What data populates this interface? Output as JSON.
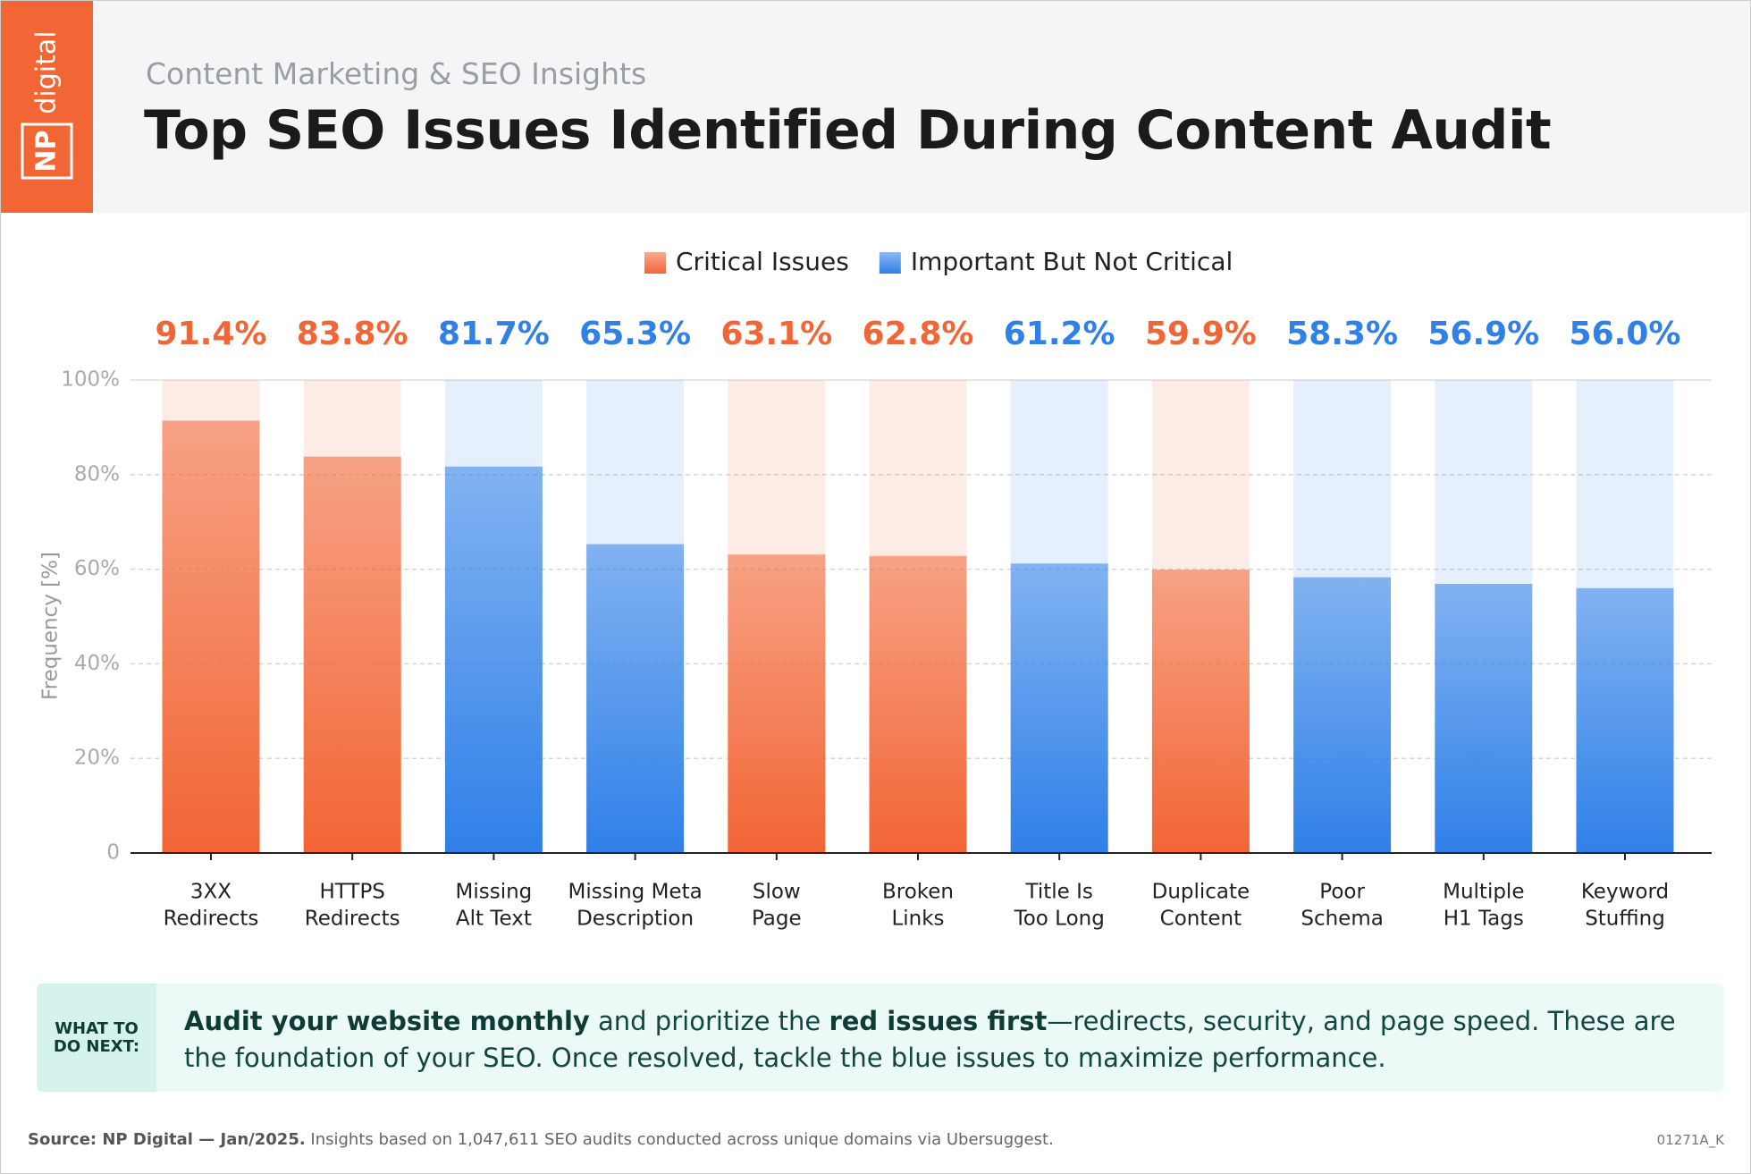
{
  "logo": {
    "np": "NP",
    "digital": "digital"
  },
  "header": {
    "subtitle": "Content Marketing & SEO Insights",
    "title": "Top SEO Issues Identified During Content Audit"
  },
  "chart_data": {
    "type": "bar",
    "ylabel": "Frequency [%]",
    "categories": [
      [
        "3XX",
        "Redirects"
      ],
      [
        "HTTPS",
        "Redirects"
      ],
      [
        "Missing",
        "Alt Text"
      ],
      [
        "Missing Meta",
        "Description"
      ],
      [
        "Slow",
        "Page"
      ],
      [
        "Broken",
        "Links"
      ],
      [
        "Title Is",
        "Too Long"
      ],
      [
        "Duplicate",
        "Content"
      ],
      [
        "Poor",
        "Schema"
      ],
      [
        "Multiple",
        "H1 Tags"
      ],
      [
        "Keyword",
        "Stuffing"
      ]
    ],
    "series": [
      {
        "name": "Critical Issues",
        "color": "#f26535",
        "values": [
          91.4,
          83.8,
          null,
          null,
          63.1,
          62.8,
          null,
          59.9,
          null,
          null,
          null
        ],
        "value_labels": [
          "91.4%",
          "83.8%",
          null,
          null,
          "63.1%",
          "62.8%",
          null,
          "59.9%",
          null,
          null,
          null
        ]
      },
      {
        "name": "Important But Not Critical",
        "color": "#2f80e8",
        "values": [
          null,
          null,
          81.7,
          65.3,
          null,
          null,
          61.2,
          null,
          58.3,
          56.9,
          56.0
        ],
        "value_labels": [
          null,
          null,
          "81.7%",
          "65.3%",
          null,
          null,
          "61.2%",
          null,
          "58.3%",
          "56.9%",
          "56.0%"
        ]
      }
    ],
    "ylim": [
      0,
      100
    ],
    "yticks": [
      0,
      {
        "value": 20,
        "label": "20%"
      },
      {
        "value": 40,
        "label": "40%"
      },
      {
        "value": 60,
        "label": "60%"
      },
      {
        "value": 80,
        "label": "80%"
      },
      {
        "value": 100,
        "label": "100%"
      }
    ],
    "grid": true
  },
  "callout": {
    "heading": "WHAT TO DO NEXT:",
    "body": [
      {
        "text": "Audit your website monthly",
        "bold": true
      },
      {
        "text": " and prioritize the ",
        "bold": false
      },
      {
        "text": "red issues first",
        "bold": true
      },
      {
        "text": "—redirects, security, and page speed. These are the foundation of your SEO. Once resolved, tackle the blue issues to maximize performance.",
        "bold": false
      }
    ]
  },
  "footer": {
    "source": "Source: NP Digital — Jan/2025.",
    "note": " Insights based on 1,047,611 SEO audits conducted across unique domains via Ubersuggest.",
    "code": "01271A_K"
  }
}
